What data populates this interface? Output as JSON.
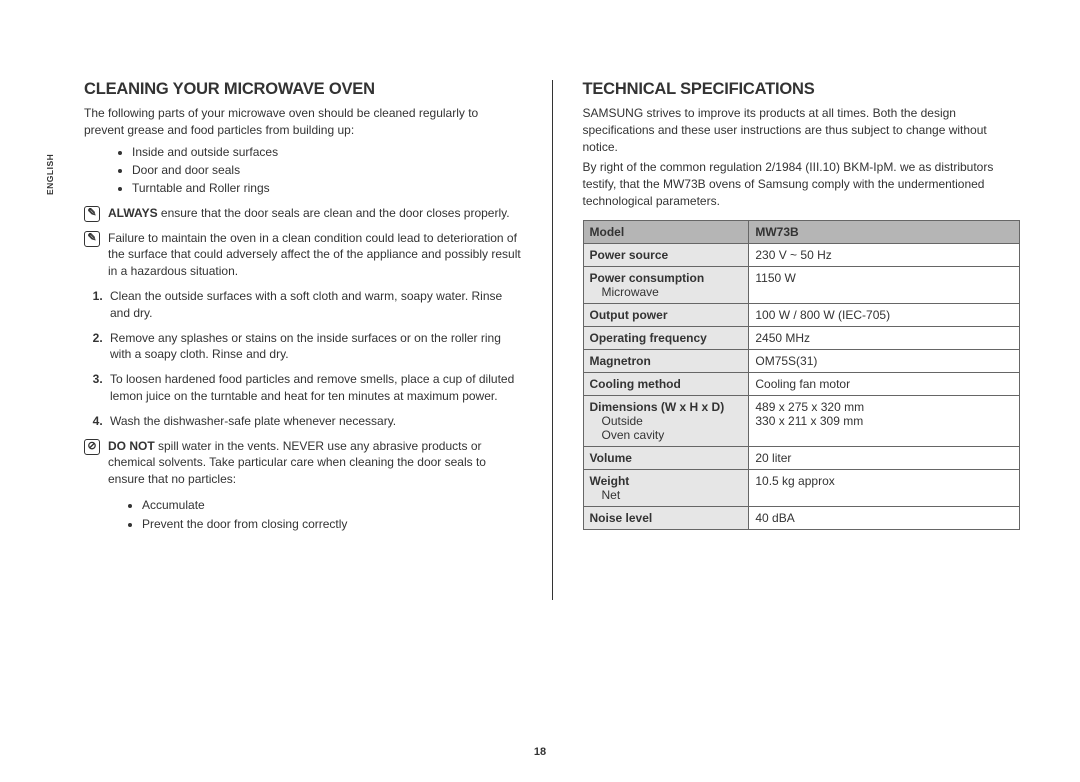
{
  "language_label": "ENGLISH",
  "page_number": "18",
  "left": {
    "heading": "CLEANING YOUR MICROWAVE OVEN",
    "intro": "The following parts of your microwave oven should be cleaned regularly to prevent grease and food particles from building up:",
    "bullets": [
      "Inside and outside surfaces",
      "Door and door seals",
      "Turntable and Roller rings"
    ],
    "note_always_bold": "ALWAYS",
    "note_always_rest": " ensure that the door seals are clean and the door closes properly.",
    "note_failure": "Failure to maintain the oven in a clean condition could lead to deterioration of the surface that could adversely affect the of the appliance and possibly result in a hazardous situation.",
    "steps": [
      "Clean the outside surfaces with a soft cloth and warm, soapy water. Rinse and dry.",
      "Remove any splashes or stains on the inside surfaces or on the roller ring with a soapy cloth. Rinse and dry.",
      "To loosen hardened food particles and remove smells, place a cup of diluted lemon juice on the turntable and heat for ten minutes at maximum power.",
      "Wash the dishwasher-safe plate whenever necessary."
    ],
    "donot_bold": "DO NOT",
    "donot_rest": " spill water in the vents. NEVER use any abrasive products or chemical solvents. Take particular care when cleaning the door seals to ensure that no particles:",
    "donot_bullets": [
      "Accumulate",
      "Prevent the door from closing correctly"
    ]
  },
  "right": {
    "heading": "TECHNICAL SPECIFICATIONS",
    "para1": "SAMSUNG strives to improve its products at all times. Both the design specifications and these user instructions are thus subject to change without notice.",
    "para2": "By right of the common regulation 2/1984 (III.10) BKM-IpM. we as distributors testify, that the MW73B ovens of Samsung comply with the undermentioned technological parameters.",
    "table": {
      "header_model": "Model",
      "header_value": "MW73B",
      "rows": [
        {
          "label": "Power source",
          "value": "230 V ~ 50 Hz"
        },
        {
          "label": "Power consumption",
          "sub_label": "Microwave",
          "value": "",
          "sub_value": "1150 W"
        },
        {
          "label": "Output power",
          "value": "100 W / 800 W (IEC-705)"
        },
        {
          "label": "Operating frequency",
          "value": "2450 MHz"
        },
        {
          "label": "Magnetron",
          "value": "OM75S(31)"
        },
        {
          "label": "Cooling method",
          "value": "Cooling fan motor"
        },
        {
          "label": "Dimensions (W x H x D)",
          "sub_label": "Outside",
          "sub_label2": "Oven cavity",
          "value": "",
          "sub_value": "489 x 275 x 320 mm",
          "sub_value2": "330 x 211 x 309 mm"
        },
        {
          "label": "Volume",
          "value": "20 liter"
        },
        {
          "label": "Weight",
          "sub_label": "Net",
          "value": "",
          "sub_value": "10.5 kg approx"
        },
        {
          "label": "Noise level",
          "value": "40 dBA"
        }
      ]
    }
  },
  "colors": {
    "text": "#333333",
    "bg": "#ffffff",
    "table_header_bg": "#b5b5b5",
    "table_label_bg": "#e6e6e6",
    "table_border": "#666666"
  }
}
